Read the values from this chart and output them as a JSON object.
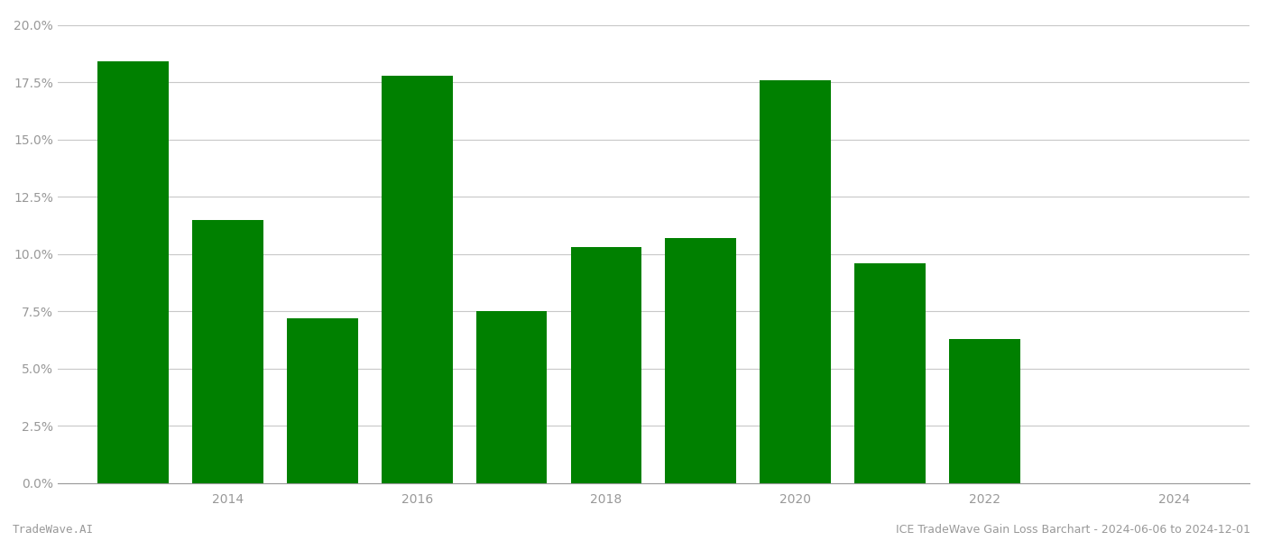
{
  "years": [
    2013,
    2014,
    2015,
    2016,
    2017,
    2018,
    2019,
    2020,
    2021,
    2022,
    2023
  ],
  "values": [
    0.184,
    0.115,
    0.072,
    0.178,
    0.075,
    0.103,
    0.107,
    0.176,
    0.096,
    0.063,
    0.0
  ],
  "bar_color": "#008000",
  "background_color": "#ffffff",
  "grid_color": "#c8c8c8",
  "axis_color": "#999999",
  "ylabel_ticks": [
    0.0,
    0.025,
    0.05,
    0.075,
    0.1,
    0.125,
    0.15,
    0.175,
    0.2
  ],
  "ylim": [
    0.0,
    0.205
  ],
  "xlim": [
    2012.2,
    2024.8
  ],
  "xlabel_tick_years": [
    2014,
    2016,
    2018,
    2020,
    2022,
    2024
  ],
  "footer_left": "TradeWave.AI",
  "footer_right": "ICE TradeWave Gain Loss Barchart - 2024-06-06 to 2024-12-01",
  "tick_fontsize": 10,
  "footer_fontsize": 9,
  "bar_width": 0.75
}
